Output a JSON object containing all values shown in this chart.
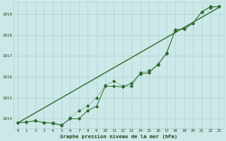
{
  "hours": [
    0,
    1,
    2,
    3,
    4,
    5,
    6,
    7,
    8,
    9,
    10,
    11,
    12,
    13,
    14,
    15,
    16,
    17,
    18,
    19,
    20,
    21,
    22,
    23
  ],
  "line_straight": [
    1013.8,
    1014.04,
    1014.28,
    1014.52,
    1014.76,
    1015.0,
    1015.24,
    1015.48,
    1015.72,
    1015.96,
    1016.2,
    1016.44,
    1016.68,
    1016.92,
    1017.16,
    1017.4,
    1017.64,
    1017.88,
    1018.12,
    1018.36,
    1018.6,
    1018.84,
    1019.08,
    1019.32
  ],
  "line_dotted": [
    1013.8,
    1013.85,
    1013.9,
    1013.82,
    1013.77,
    1013.67,
    1014.05,
    1014.38,
    1014.62,
    1015.0,
    1015.6,
    1015.8,
    1015.55,
    1015.55,
    1016.2,
    1016.3,
    1016.6,
    1017.15,
    1018.2,
    1018.3,
    1018.55,
    1019.1,
    1019.3,
    1019.35
  ],
  "line_solid": [
    1013.8,
    1013.85,
    1013.9,
    1013.82,
    1013.8,
    1013.7,
    1014.0,
    1014.0,
    1014.4,
    1014.6,
    1015.55,
    1015.55,
    1015.52,
    1015.7,
    1016.15,
    1016.2,
    1016.58,
    1017.12,
    1018.25,
    1018.28,
    1018.55,
    1019.1,
    1019.35,
    1019.35
  ],
  "ylim_min": 1013.55,
  "ylim_max": 1019.55,
  "yticks": [
    1014,
    1015,
    1016,
    1017,
    1018,
    1019
  ],
  "xticks": [
    0,
    1,
    2,
    3,
    4,
    5,
    6,
    7,
    8,
    9,
    10,
    11,
    12,
    13,
    14,
    15,
    16,
    17,
    18,
    19,
    20,
    21,
    22,
    23
  ],
  "color_main": "#2d6a2d",
  "color_bg": "#cce8e8",
  "xlabel": "Graphe pression niveau de la mer (hPa)",
  "tick_color": "#1a4a1a",
  "grid_color": "#aacccc",
  "grid_color2": "#bbdddd"
}
